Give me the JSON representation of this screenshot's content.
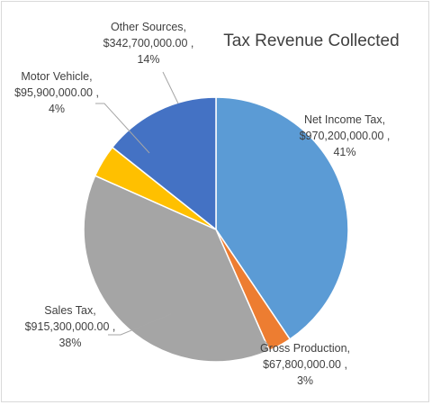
{
  "chart_data": {
    "type": "pie",
    "title": "Tax Revenue Collected",
    "slices": [
      {
        "name": "Net Income Tax",
        "value": 970200000,
        "value_text": "$970,200,000.00",
        "percent_text": "41%",
        "color": "#5B9BD5"
      },
      {
        "name": "Gross Production",
        "value": 67800000,
        "value_text": "$67,800,000.00",
        "percent_text": "3%",
        "color": "#ED7D31"
      },
      {
        "name": "Sales Tax",
        "value": 915300000,
        "value_text": "$915,300,000.00",
        "percent_text": "38%",
        "color": "#A5A5A5"
      },
      {
        "name": "Motor Vehicle",
        "value": 95900000,
        "value_text": "$95,900,000.00",
        "percent_text": "4%",
        "color": "#FFC000"
      },
      {
        "name": "Other Sources",
        "value": 342700000,
        "value_text": "$342,700,000.00",
        "percent_text": "14%",
        "color": "#4472C4"
      }
    ]
  }
}
